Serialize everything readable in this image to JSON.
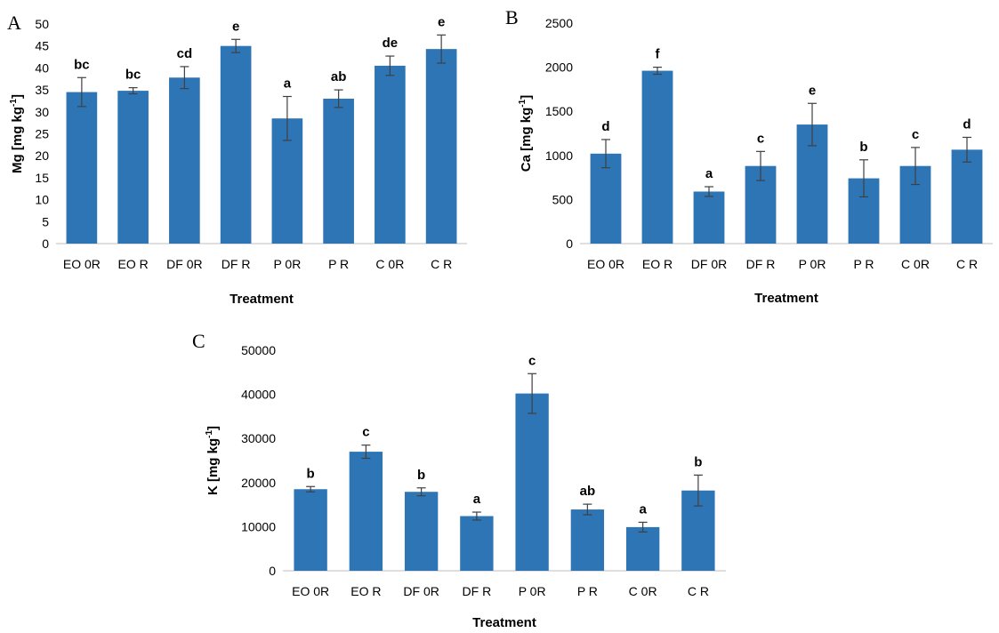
{
  "chart_data": [
    {
      "type": "bar",
      "panel": "A",
      "categories": [
        "EO 0R",
        "EO R",
        "DF 0R",
        "DF R",
        "P 0R",
        "P R",
        "C 0R",
        "C R"
      ],
      "values": [
        34.5,
        34.8,
        37.8,
        45.0,
        28.5,
        33.0,
        40.5,
        44.3
      ],
      "errors": [
        3.3,
        0.7,
        2.5,
        1.5,
        5.0,
        2.0,
        2.2,
        3.2
      ],
      "letters": [
        "bc",
        "bc",
        "cd",
        "e",
        "a",
        "ab",
        "de",
        "e"
      ],
      "yticks": [
        "0",
        "5",
        "10",
        "15",
        "20",
        "25",
        "30",
        "35",
        "40",
        "45",
        "50"
      ],
      "xlabel": "Treatment",
      "ylabel_main": "Mg [mg kg",
      "ylabel_sup": "-1",
      "ylabel_end": "]",
      "ylim": [
        0,
        50
      ],
      "grid": false,
      "color": "#2e75b6"
    },
    {
      "type": "bar",
      "panel": "B",
      "categories": [
        "EO 0R",
        "EO R",
        "DF 0R",
        "DF R",
        "P 0R",
        "P R",
        "C 0R",
        "C R"
      ],
      "values": [
        1020,
        1960,
        590,
        880,
        1350,
        740,
        880,
        1065
      ],
      "errors": [
        160,
        40,
        55,
        165,
        240,
        210,
        210,
        140
      ],
      "letters": [
        "d",
        "f",
        "a",
        "c",
        "e",
        "b",
        "c",
        "d"
      ],
      "yticks": [
        "0",
        "500",
        "1000",
        "1500",
        "2000",
        "2500"
      ],
      "xlabel": "Treatment",
      "ylabel_main": "Ca [mg kg",
      "ylabel_sup": "-1",
      "ylabel_end": "]",
      "ylim": [
        0,
        2500
      ],
      "grid": false,
      "color": "#2e75b6"
    },
    {
      "type": "bar",
      "panel": "C",
      "categories": [
        "EO 0R",
        "EO R",
        "DF 0R",
        "DF R",
        "P 0R",
        "P R",
        "C 0R",
        "C R"
      ],
      "values": [
        18500,
        27000,
        17900,
        12400,
        40200,
        13900,
        9900,
        18200
      ],
      "errors": [
        600,
        1500,
        900,
        900,
        4500,
        1200,
        1100,
        3500
      ],
      "letters": [
        "b",
        "c",
        "b",
        "a",
        "c",
        "ab",
        "a",
        "b"
      ],
      "yticks": [
        "0",
        "10000",
        "20000",
        "30000",
        "40000",
        "50000"
      ],
      "xlabel": "Treatment",
      "ylabel_main": "K [mg kg",
      "ylabel_sup": "-1",
      "ylabel_end": "]",
      "ylim": [
        0,
        50000
      ],
      "grid": false,
      "color": "#2e75b6"
    }
  ]
}
